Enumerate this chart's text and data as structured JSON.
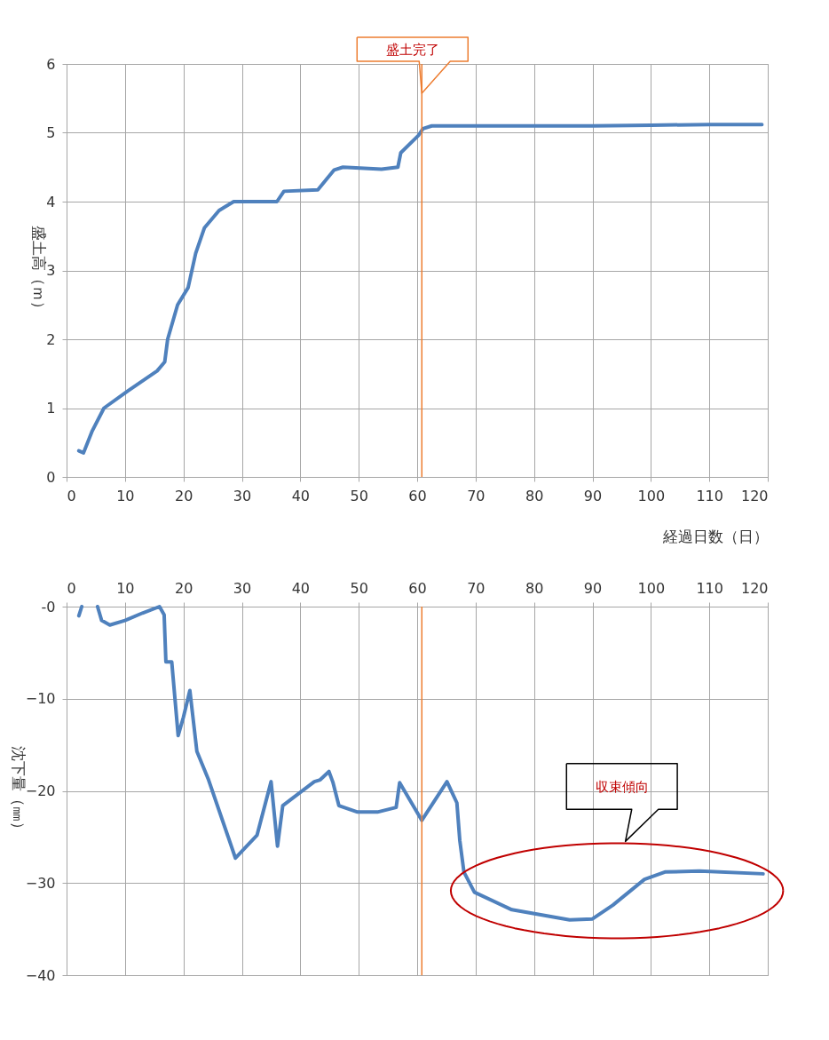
{
  "chart_data": [
    {
      "type": "line",
      "xlabel": "経過日数（日）",
      "ylabel": "盛土高（ｍ）",
      "xlim": [
        0,
        120
      ],
      "xticks": [
        0,
        10,
        20,
        30,
        40,
        50,
        60,
        70,
        80,
        90,
        100,
        110,
        120
      ],
      "ylim": [
        0,
        6
      ],
      "yticks": [
        0,
        1,
        2,
        3,
        4,
        5,
        6
      ],
      "grid": true,
      "x": [
        2.1,
        2.9,
        4.4,
        6.4,
        10.5,
        15.5,
        16.8,
        17.3,
        19.0,
        20.8,
        22.1,
        23.6,
        26.1,
        28.6,
        36.0,
        37.2,
        43.0,
        45.8,
        47.3,
        53.9,
        56.7,
        57.2,
        60.2,
        61.0,
        62.5,
        70,
        80,
        90,
        100,
        110,
        119
      ],
      "series": [
        {
          "color": "#4f81bd",
          "values": [
            0.38,
            0.35,
            0.67,
            1.0,
            1.25,
            1.54,
            1.67,
            2.0,
            2.5,
            2.75,
            3.25,
            3.62,
            3.87,
            4.0,
            4.0,
            4.15,
            4.17,
            4.46,
            4.5,
            4.47,
            4.5,
            4.71,
            4.96,
            5.06,
            5.1,
            5.1,
            5.1,
            5.1,
            5.11,
            5.12,
            5.12
          ]
        }
      ],
      "ref_lines": [
        {
          "axis": "x",
          "value": 60.8,
          "label": "盛土完了",
          "color": "#ed7d31"
        }
      ]
    },
    {
      "type": "line",
      "ylabel": "沈下量（㎜）",
      "xlim": [
        0,
        120
      ],
      "xticks": [
        0,
        10,
        20,
        30,
        40,
        50,
        60,
        70,
        80,
        90,
        100,
        110,
        120
      ],
      "ylim": [
        -40,
        0
      ],
      "yticks": [
        {
          "value": 0,
          "label": "-0"
        },
        -10,
        -20,
        -30,
        -40
      ],
      "grid": true,
      "x": [
        2.1,
        2.6,
        4.0,
        5.3,
        6.0,
        7.4,
        10.0,
        13.0,
        15.9,
        16.7,
        17.0,
        18.0,
        19.1,
        20.0,
        21.1,
        22.3,
        24.3,
        28.9,
        32.6,
        35.0,
        36.1,
        37.0,
        42.4,
        43.4,
        44.9,
        45.6,
        46.6,
        49.8,
        53.2,
        56.4,
        57.0,
        60.8,
        65.1,
        66.8,
        67.3,
        68.0,
        69.8,
        76.2,
        86.1,
        90.0,
        93.5,
        98.9,
        102.4,
        108.3,
        119.2
      ],
      "series": [
        {
          "color": "#4f81bd",
          "values": [
            -1.0,
            0.0,
            null,
            0.0,
            -1.5,
            -2.0,
            -1.5,
            -0.7,
            0.0,
            -0.9,
            -6.0,
            -6.0,
            -14.0,
            -12.0,
            -9.1,
            -15.7,
            -18.8,
            -27.3,
            -24.8,
            -19.0,
            -26.0,
            -21.6,
            -19.0,
            -18.8,
            -17.9,
            -19.1,
            -21.6,
            -22.3,
            -22.3,
            -21.8,
            -19.1,
            -23.2,
            -19.0,
            -21.3,
            -25.4,
            -28.8,
            -31.0,
            -32.9,
            -34.0,
            -33.9,
            -32.4,
            -29.6,
            -28.8,
            -28.7,
            -29.0
          ]
        }
      ],
      "ref_lines": [
        {
          "axis": "x",
          "value": 60.8,
          "color": "#ed7d31"
        }
      ],
      "annotations": [
        "収束傾向"
      ]
    }
  ]
}
